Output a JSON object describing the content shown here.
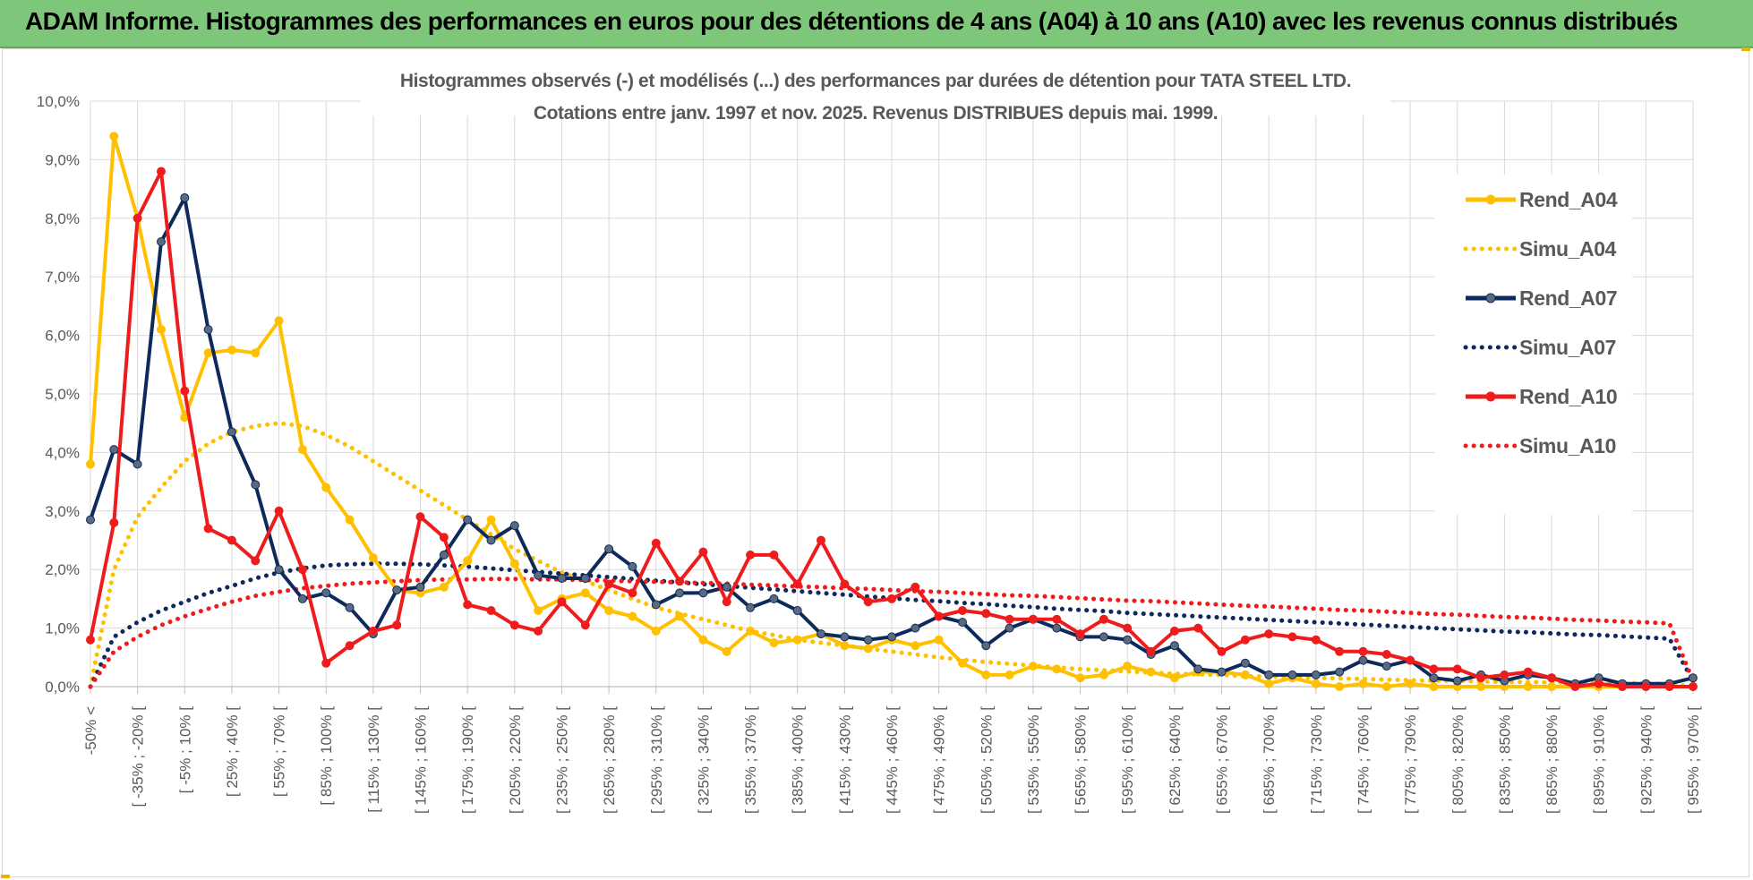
{
  "banner": {
    "title": "ADAM Informe. Histogrammes des performances en euros pour des détentions de 4 ans (A04) à 10 ans (A10) avec les revenus connus distribués"
  },
  "colors": {
    "banner_bg": "#7ec77a",
    "A04": "#ffc000",
    "A07": "#0e2a5c",
    "A10": "#ee1c1c",
    "grid": "#d9d9d9",
    "axis_text": "#595959"
  },
  "chart_data": {
    "type": "line",
    "title_line1": "Histogrammes observés (-) et modélisés (...) des performances par durées de détention pour TATA STEEL LTD.",
    "title_line2": "Cotations entre janv. 1997 et nov. 2025. Revenus DISTRIBUES depuis mai. 1999.",
    "ylim": [
      0,
      10
    ],
    "y_ticks": [
      "0,0%",
      "1,0%",
      "2,0%",
      "3,0%",
      "4,0%",
      "5,0%",
      "6,0%",
      "7,0%",
      "8,0%",
      "9,0%",
      "10,0%"
    ],
    "x_tick_labels": [
      "-50% <",
      "[ -35% ; -20% [",
      "[ -5% ; 10% [",
      "[ 25% ; 40% [",
      "[ 55% ; 70% [",
      "[ 85% ; 100% [",
      "[ 115% ; 130% [",
      "[ 145% ; 160% [",
      "[ 175% ; 190% [",
      "[ 205% ; 220% [",
      "[ 235% ; 250% [",
      "[ 265% ; 280% [",
      "[ 295% ; 310% [",
      "[ 325% ; 340% [",
      "[ 355% ; 370% [",
      "[ 385% ; 400% [",
      "[ 415% ; 430% [",
      "[ 445% ; 460% [",
      "[ 475% ; 490% [",
      "[ 505% ; 520% [",
      "[ 535% ; 550% [",
      "[ 565% ; 580% [",
      "[ 595% ; 610% [",
      "[ 625% ; 640% [",
      "[ 655% ; 670% [",
      "[ 685% ; 700% [",
      "[ 715% ; 730% [",
      "[ 745% ; 760% [",
      "[ 775% ; 790% [",
      "[ 805% ; 820% [",
      "[ 835% ; 850% [",
      "[ 865% ; 880% [",
      "[ 895% ; 910% [",
      "[ 925% ; 940% [",
      "[ 955% ; 970% ["
    ],
    "n_bins": 69,
    "series": [
      {
        "name": "Rend_A04",
        "style": "solid",
        "color": "#ffc000",
        "values": [
          3.8,
          9.4,
          8.0,
          6.1,
          4.6,
          5.7,
          5.75,
          5.7,
          6.25,
          4.05,
          3.4,
          2.85,
          2.2,
          1.65,
          1.6,
          1.7,
          2.15,
          2.85,
          2.1,
          1.3,
          1.5,
          1.6,
          1.3,
          1.2,
          0.95,
          1.2,
          0.8,
          0.6,
          0.95,
          0.75,
          0.8,
          0.9,
          0.7,
          0.65,
          0.8,
          0.7,
          0.8,
          0.4,
          0.2,
          0.2,
          0.35,
          0.3,
          0.15,
          0.2,
          0.35,
          0.25,
          0.15,
          0.25,
          0.25,
          0.2,
          0.05,
          0.15,
          0.05,
          0.0,
          0.05,
          0.0,
          0.05,
          0.0,
          0.0,
          0.0,
          0.0,
          0.0,
          0.0,
          0.0,
          0.0,
          0.0,
          0.0,
          0.0,
          0.0
        ]
      },
      {
        "name": "Simu_A04",
        "style": "dotted",
        "color": "#ffc000",
        "values": [
          0.0,
          2.0,
          2.9,
          3.4,
          3.85,
          4.15,
          4.35,
          4.45,
          4.5,
          4.45,
          4.3,
          4.1,
          3.85,
          3.6,
          3.35,
          3.1,
          2.85,
          2.6,
          2.35,
          2.15,
          1.95,
          1.8,
          1.65,
          1.5,
          1.35,
          1.25,
          1.15,
          1.05,
          0.95,
          0.88,
          0.8,
          0.75,
          0.7,
          0.65,
          0.6,
          0.55,
          0.5,
          0.46,
          0.42,
          0.39,
          0.36,
          0.33,
          0.3,
          0.28,
          0.26,
          0.24,
          0.22,
          0.21,
          0.2,
          0.18,
          0.17,
          0.16,
          0.15,
          0.14,
          0.13,
          0.12,
          0.11,
          0.1,
          0.1,
          0.09,
          0.08,
          0.08,
          0.07,
          0.07,
          0.06,
          0.06,
          0.05,
          0.05,
          0.0
        ]
      },
      {
        "name": "Rend_A07",
        "style": "solid",
        "color": "#0e2a5c",
        "values": [
          2.85,
          4.05,
          3.8,
          7.6,
          8.35,
          6.1,
          4.35,
          3.45,
          2.0,
          1.5,
          1.6,
          1.35,
          0.9,
          1.65,
          1.7,
          2.25,
          2.85,
          2.5,
          2.75,
          1.9,
          1.85,
          1.85,
          2.35,
          2.05,
          1.4,
          1.6,
          1.6,
          1.7,
          1.35,
          1.5,
          1.3,
          0.9,
          0.85,
          0.8,
          0.85,
          1.0,
          1.2,
          1.1,
          0.7,
          1.0,
          1.15,
          1.0,
          0.85,
          0.85,
          0.8,
          0.55,
          0.7,
          0.3,
          0.25,
          0.4,
          0.2,
          0.2,
          0.2,
          0.25,
          0.45,
          0.35,
          0.45,
          0.15,
          0.1,
          0.2,
          0.1,
          0.2,
          0.15,
          0.05,
          0.15,
          0.05,
          0.05,
          0.05,
          0.15
        ]
      },
      {
        "name": "Simu_A07",
        "style": "dotted",
        "color": "#0e2a5c",
        "values": [
          0.0,
          0.85,
          1.1,
          1.3,
          1.45,
          1.6,
          1.72,
          1.85,
          1.95,
          2.02,
          2.07,
          2.09,
          2.1,
          2.1,
          2.09,
          2.07,
          2.05,
          2.02,
          1.99,
          1.96,
          1.93,
          1.9,
          1.87,
          1.84,
          1.81,
          1.78,
          1.75,
          1.72,
          1.69,
          1.66,
          1.63,
          1.6,
          1.57,
          1.54,
          1.51,
          1.48,
          1.46,
          1.43,
          1.41,
          1.38,
          1.36,
          1.33,
          1.31,
          1.29,
          1.26,
          1.24,
          1.22,
          1.2,
          1.18,
          1.16,
          1.14,
          1.12,
          1.1,
          1.08,
          1.06,
          1.04,
          1.02,
          1.0,
          0.98,
          0.96,
          0.94,
          0.93,
          0.91,
          0.89,
          0.88,
          0.86,
          0.84,
          0.82,
          0.1
        ]
      },
      {
        "name": "Rend_A10",
        "style": "solid",
        "color": "#ee1c1c",
        "values": [
          0.8,
          2.8,
          8.0,
          8.8,
          5.05,
          2.7,
          2.5,
          2.15,
          3.0,
          2.0,
          0.4,
          0.7,
          0.95,
          1.05,
          2.9,
          2.55,
          1.4,
          1.3,
          1.05,
          0.95,
          1.45,
          1.05,
          1.75,
          1.6,
          2.45,
          1.8,
          2.3,
          1.45,
          2.25,
          2.25,
          1.75,
          2.5,
          1.75,
          1.45,
          1.5,
          1.7,
          1.2,
          1.3,
          1.25,
          1.15,
          1.15,
          1.15,
          0.9,
          1.15,
          1.0,
          0.6,
          0.95,
          1.0,
          0.6,
          0.8,
          0.9,
          0.85,
          0.8,
          0.6,
          0.6,
          0.55,
          0.45,
          0.3,
          0.3,
          0.15,
          0.2,
          0.25,
          0.15,
          0.0,
          0.05,
          0.0,
          0.0,
          0.0,
          0.0
        ]
      },
      {
        "name": "Simu_A10",
        "style": "dotted",
        "color": "#ee1c1c",
        "values": [
          0.0,
          0.6,
          0.85,
          1.05,
          1.2,
          1.33,
          1.45,
          1.55,
          1.62,
          1.68,
          1.72,
          1.76,
          1.78,
          1.8,
          1.82,
          1.83,
          1.83,
          1.84,
          1.84,
          1.83,
          1.83,
          1.82,
          1.81,
          1.8,
          1.79,
          1.78,
          1.77,
          1.76,
          1.74,
          1.73,
          1.71,
          1.7,
          1.68,
          1.67,
          1.65,
          1.63,
          1.62,
          1.6,
          1.58,
          1.56,
          1.55,
          1.53,
          1.51,
          1.49,
          1.47,
          1.46,
          1.44,
          1.42,
          1.4,
          1.38,
          1.37,
          1.35,
          1.33,
          1.31,
          1.3,
          1.28,
          1.26,
          1.24,
          1.23,
          1.21,
          1.19,
          1.18,
          1.16,
          1.14,
          1.13,
          1.11,
          1.1,
          1.08,
          0.1
        ]
      }
    ],
    "legend_position": "right"
  }
}
